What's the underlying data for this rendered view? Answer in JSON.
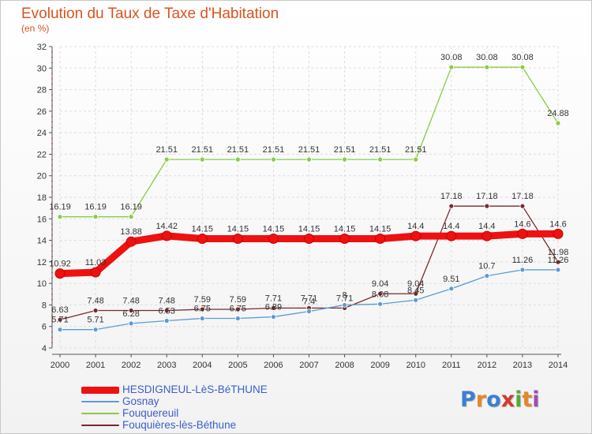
{
  "header": {
    "title": "Evolution du Taux de Taxe d'Habitation",
    "unit": "(en %)"
  },
  "chart_data": {
    "type": "line",
    "title": "Evolution du Taux de Taxe d'Habitation",
    "ylabel": "(en %)",
    "xlabel": "",
    "x": [
      "2000",
      "2001",
      "2002",
      "2003",
      "2004",
      "2005",
      "2006",
      "2007",
      "2008",
      "2009",
      "2010",
      "2011",
      "2012",
      "2013",
      "2014"
    ],
    "ylim": [
      4,
      32
    ],
    "yticks": [
      4,
      6,
      8,
      10,
      12,
      14,
      16,
      18,
      20,
      22,
      24,
      26,
      28,
      30,
      32
    ],
    "grid": true,
    "legend_position": "bottom-left",
    "series": [
      {
        "name": "HESDIGNEUL-LèS-BéTHUNE",
        "color": "#ee1111",
        "style": "thick",
        "values": [
          10.92,
          11.03,
          13.88,
          14.42,
          14.15,
          14.15,
          14.15,
          14.15,
          14.15,
          14.15,
          14.4,
          14.4,
          14.4,
          14.6,
          14.6
        ],
        "labels": [
          "10.92",
          "11.03",
          "13.88",
          "14.42",
          "14.15",
          "14.15",
          "14.15",
          "14.15",
          "14.15",
          "14.15",
          "14.4",
          "14.4",
          "14.4",
          "14.6",
          "14.6"
        ]
      },
      {
        "name": "Gosnay",
        "color": "#5b9bd5",
        "style": "thin",
        "values": [
          5.71,
          5.71,
          6.28,
          6.53,
          6.75,
          6.75,
          6.89,
          7.4,
          8.0,
          8.08,
          8.45,
          9.51,
          10.7,
          11.26,
          11.26
        ],
        "labels": [
          "5.71",
          "5.71",
          "6.28",
          "6.53",
          "6.75",
          "6.75",
          "6.89",
          "7.4",
          "8",
          "8.08",
          "8.45",
          "9.51",
          "10.7",
          "11.26",
          "11.26"
        ]
      },
      {
        "name": "Fouquereuil",
        "color": "#88cc44",
        "style": "thin",
        "values": [
          16.19,
          16.19,
          16.19,
          21.51,
          21.51,
          21.51,
          21.51,
          21.51,
          21.51,
          21.51,
          21.51,
          30.08,
          30.08,
          30.08,
          24.88
        ],
        "labels": [
          "16.19",
          "16.19",
          "16.19",
          "21.51",
          "21.51",
          "21.51",
          "21.51",
          "21.51",
          "21.51",
          "21.51",
          "21.51",
          "30.08",
          "30.08",
          "30.08",
          "24.88"
        ]
      },
      {
        "name": "Fouquières-lès-Béthune",
        "color": "#7a2a2a",
        "style": "thin",
        "values": [
          6.63,
          7.48,
          7.48,
          7.48,
          7.59,
          7.59,
          7.71,
          7.71,
          7.71,
          9.04,
          9.04,
          17.18,
          17.18,
          17.18,
          11.98
        ],
        "labels": [
          "6.63",
          "7.48",
          "7.48",
          "7.48",
          "7.59",
          "7.59",
          "7.71",
          "7.71",
          "7.71",
          "9.04",
          "9.04",
          "17.18",
          "17.18",
          "17.18",
          "11.98"
        ]
      }
    ]
  },
  "logo": {
    "letters": [
      "P",
      "r",
      "o",
      "x",
      "i",
      "t",
      "i"
    ],
    "colors": [
      "#3b7fd4",
      "#e8852a",
      "#3b7fd4",
      "#d23b2b",
      "#58a83a",
      "#e8852a",
      "#9a4fb0"
    ]
  }
}
